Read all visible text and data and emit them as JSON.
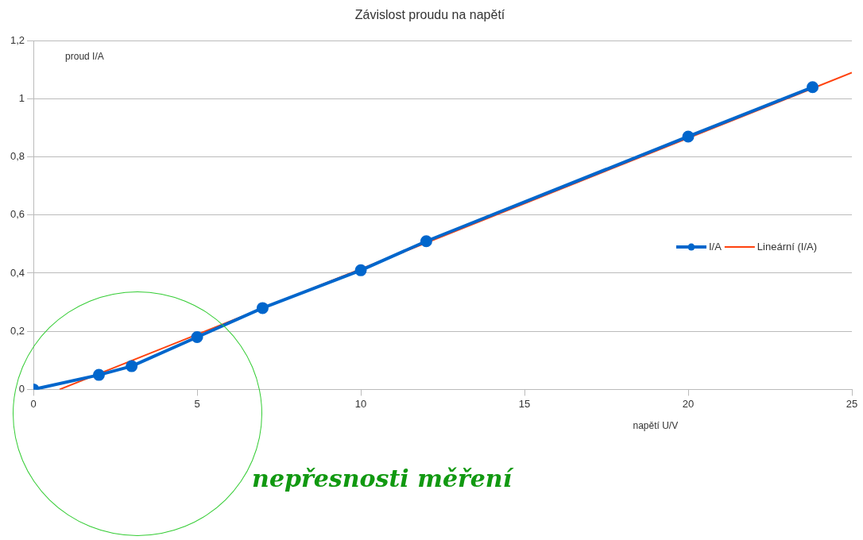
{
  "chart_data": {
    "type": "line",
    "title": "Závislost proudu na napětí",
    "xlabel": "napětí U/V",
    "ylabel": "proud I/A",
    "x": [
      0,
      2,
      3,
      5,
      7,
      10,
      12,
      20,
      23.8
    ],
    "series": [
      {
        "name": "I/A",
        "color": "#0066cc",
        "values": [
          0,
          0.05,
          0.08,
          0.18,
          0.28,
          0.41,
          0.51,
          0.87,
          1.04
        ],
        "marker": "circle"
      },
      {
        "name": "Lineární (I/A)",
        "color": "#ff420e",
        "x": [
          0.8,
          25
        ],
        "values": [
          0,
          1.09
        ],
        "marker": "none"
      }
    ],
    "xlim": [
      0,
      25
    ],
    "xticks": [
      0,
      5,
      10,
      15,
      20,
      25
    ],
    "ylim": [
      0,
      1.2
    ],
    "yticks": [
      0,
      {
        "value": 0.2,
        "label": "0,2"
      },
      {
        "value": 0.4,
        "label": "0,4"
      },
      {
        "value": 0.6,
        "label": "0,6"
      },
      {
        "value": 0.8,
        "label": "0,8"
      },
      1,
      {
        "value": 1.2,
        "label": "1,2"
      }
    ],
    "grid": "y",
    "legend": "right",
    "line_style": "solid",
    "annotations": [
      "nepřesnosti měření"
    ]
  }
}
